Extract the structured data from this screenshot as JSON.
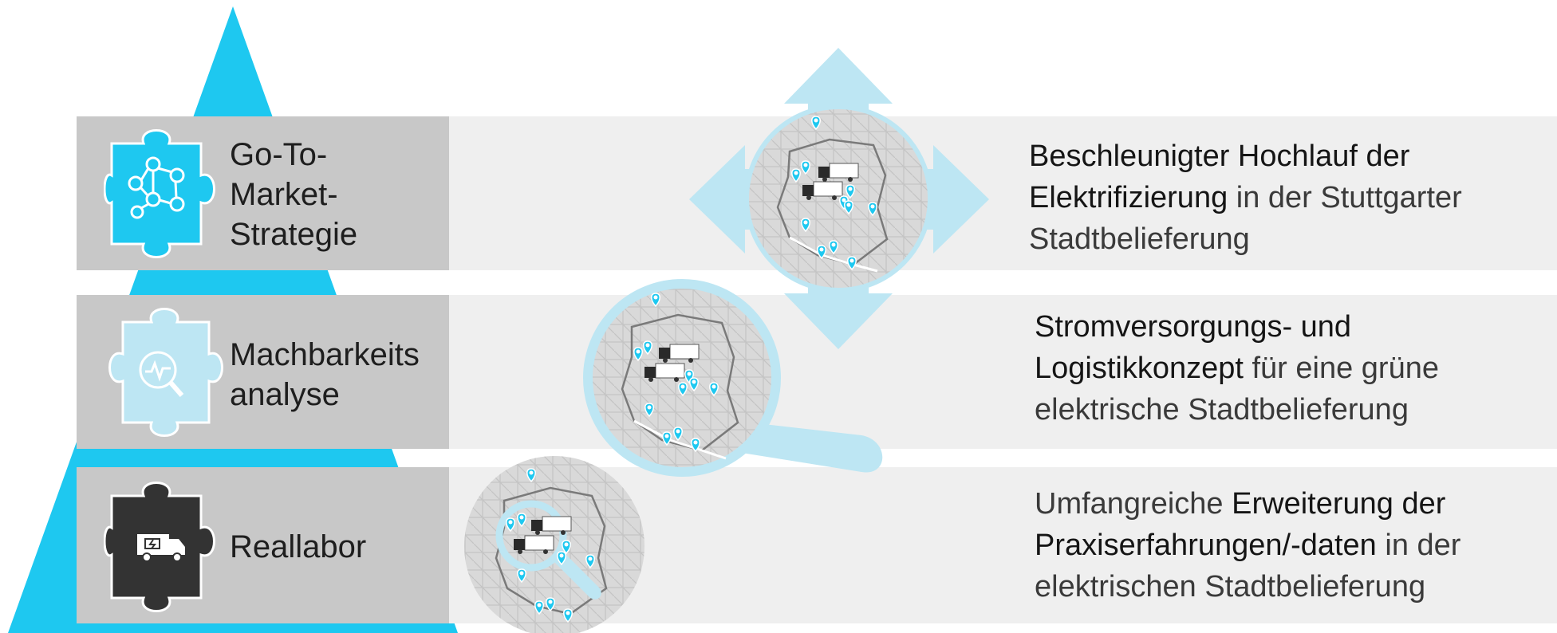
{
  "colors": {
    "accent": "#1ec8f0",
    "light_accent": "#bde6f3",
    "dark": "#333333",
    "band_grey": "#c8c8c8",
    "band_light": "#efefef"
  },
  "levels": [
    {
      "label_lines": [
        "Go-To-",
        "Market-",
        "Strategie"
      ],
      "icon": "network-people-icon",
      "desc_highlight_1": "Beschleunigter Hochlauf der",
      "desc_highlight_2": "Elektrifizierung",
      "desc_rest_2": " in der Stuttgarter",
      "desc_line_3": "Stadtbelieferung"
    },
    {
      "label_lines": [
        "Machbarkeits",
        "analyse"
      ],
      "icon": "magnifier-pulse-icon",
      "desc_highlight_1": "Stromversorgungs- und",
      "desc_highlight_2": "Logistikkonzept",
      "desc_rest_2": " für eine grüne",
      "desc_line_3": "elektrische Stadtbelieferung"
    },
    {
      "label_lines": [
        "Reallabor"
      ],
      "icon": "electric-truck-icon",
      "desc_plain_1": "Umfangreiche ",
      "desc_highlight_1": "Erweiterung der",
      "desc_highlight_2": "Praxiserfahrungen/-daten",
      "desc_rest_2": " in der",
      "desc_line_3": "elektrischen Stadtbelieferung"
    }
  ]
}
